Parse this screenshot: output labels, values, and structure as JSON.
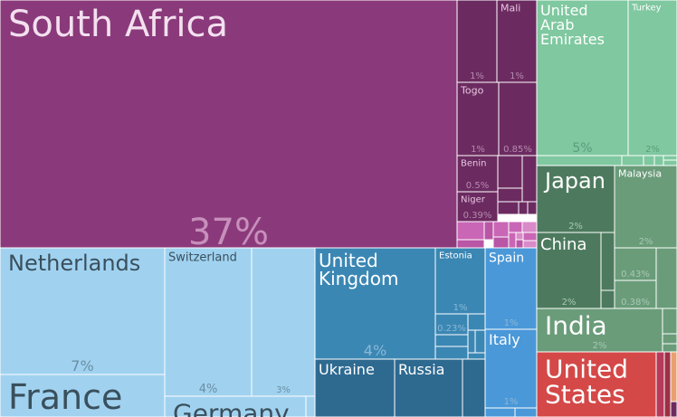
{
  "chart_data": {
    "type": "treemap",
    "title": "",
    "unit": "percent share",
    "colors": {
      "africa": "#8a3a7a",
      "africa_dark": "#6b2b60",
      "africa_light": "#c966b6",
      "asia": "#7fc8a0",
      "asia_dark": "#4d7a5e",
      "asia_mid": "#6a9c7a",
      "europe_light": "#a0d2f0",
      "europe_mid": "#3b87b4",
      "europe_dark": "#2e6a90",
      "europe_bright": "#4a98d8",
      "americas": "#d44848",
      "border": "#ffffff"
    },
    "tiles": [
      {
        "name": "South Africa",
        "pct": "37%",
        "value": 37,
        "group": "africa"
      },
      {
        "name": "Mali",
        "pct": "1%",
        "value": 1.1,
        "group": "africa_dark"
      },
      {
        "name": "",
        "pct": "1%",
        "value": 1.1,
        "group": "africa_dark"
      },
      {
        "name": "Togo",
        "pct": "1%",
        "value": 1.0,
        "group": "africa_dark"
      },
      {
        "name": "",
        "pct": "0.85%",
        "value": 0.85,
        "group": "africa_dark"
      },
      {
        "name": "Benin",
        "pct": "0.5%",
        "value": 0.5,
        "group": "africa_dark"
      },
      {
        "name": "Niger",
        "pct": "0.39%",
        "value": 0.39,
        "group": "africa_dark"
      },
      {
        "name": "United Arab Emirates",
        "pct": "5%",
        "value": 5,
        "group": "asia"
      },
      {
        "name": "Turkey",
        "pct": "2%",
        "value": 2,
        "group": "asia"
      },
      {
        "name": "Japan",
        "pct": "2%",
        "value": 2,
        "group": "asia_dark"
      },
      {
        "name": "Malaysia",
        "pct": "2%",
        "value": 2,
        "group": "asia_mid"
      },
      {
        "name": "China",
        "pct": "2%",
        "value": 2,
        "group": "asia_dark"
      },
      {
        "name": "",
        "pct": "0.43%",
        "value": 0.43,
        "group": "asia_mid"
      },
      {
        "name": "",
        "pct": "0.38%",
        "value": 0.38,
        "group": "asia_mid"
      },
      {
        "name": "India",
        "pct": "2%",
        "value": 2,
        "group": "asia_mid"
      },
      {
        "name": "Netherlands",
        "pct": "7%",
        "value": 7,
        "group": "europe_light"
      },
      {
        "name": "France",
        "pct": "",
        "value": 3,
        "group": "europe_light"
      },
      {
        "name": "Switzerland",
        "pct": "4%",
        "value": 4,
        "group": "europe_light"
      },
      {
        "name": "",
        "pct": "3%",
        "value": 3,
        "group": "europe_light"
      },
      {
        "name": "Germany",
        "pct": "",
        "value": 1.5,
        "group": "europe_light"
      },
      {
        "name": "United Kingdom",
        "pct": "4%",
        "value": 4,
        "group": "europe_mid"
      },
      {
        "name": "Estonia",
        "pct": "1%",
        "value": 1,
        "group": "europe_mid"
      },
      {
        "name": "",
        "pct": "0.23%",
        "value": 0.23,
        "group": "europe_mid"
      },
      {
        "name": "Ukraine",
        "pct": "",
        "value": 1.5,
        "group": "europe_dark"
      },
      {
        "name": "Russia",
        "pct": "",
        "value": 1.3,
        "group": "europe_dark"
      },
      {
        "name": "Spain",
        "pct": "1%",
        "value": 1,
        "group": "europe_bright"
      },
      {
        "name": "Italy",
        "pct": "1%",
        "value": 1,
        "group": "europe_bright"
      },
      {
        "name": "United States",
        "pct": "",
        "value": 2,
        "group": "americas"
      }
    ]
  }
}
